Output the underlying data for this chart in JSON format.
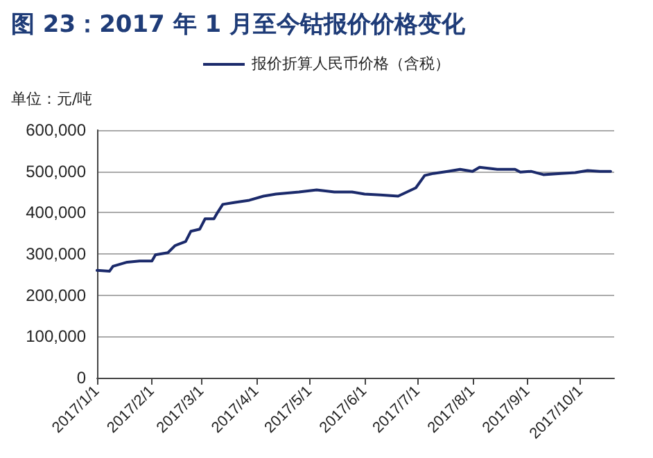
{
  "chart_data": {
    "type": "line",
    "title": "图 23：2017 年 1 月至今钴报价价格变化",
    "ylabel": "单位：元/吨",
    "series": [
      {
        "name": "报价折算人民币价格（含税）",
        "color": "#1b2a6b",
        "x": [
          "2017-01-01",
          "2017-01-08",
          "2017-01-10",
          "2017-01-18",
          "2017-01-25",
          "2017-02-01",
          "2017-02-03",
          "2017-02-10",
          "2017-02-14",
          "2017-02-20",
          "2017-02-23",
          "2017-02-28",
          "2017-03-03",
          "2017-03-08",
          "2017-03-10",
          "2017-03-13",
          "2017-03-20",
          "2017-03-28",
          "2017-04-05",
          "2017-04-12",
          "2017-04-25",
          "2017-05-05",
          "2017-05-15",
          "2017-05-25",
          "2017-06-01",
          "2017-06-10",
          "2017-06-20",
          "2017-06-25",
          "2017-06-30",
          "2017-07-05",
          "2017-07-10",
          "2017-07-18",
          "2017-07-25",
          "2017-08-01",
          "2017-08-05",
          "2017-08-15",
          "2017-08-25",
          "2017-08-28",
          "2017-09-03",
          "2017-09-10",
          "2017-09-20",
          "2017-09-28",
          "2017-10-05",
          "2017-10-12",
          "2017-10-18"
        ],
        "values": [
          260000,
          258000,
          270000,
          280000,
          283000,
          283000,
          298000,
          303000,
          320000,
          330000,
          355000,
          360000,
          385000,
          385000,
          400000,
          420000,
          425000,
          430000,
          440000,
          445000,
          450000,
          455000,
          450000,
          450000,
          445000,
          443000,
          440000,
          450000,
          460000,
          490000,
          495000,
          500000,
          505000,
          500000,
          510000,
          505000,
          505000,
          498000,
          500000,
          492000,
          495000,
          497000,
          502000,
          500000,
          500000
        ]
      }
    ],
    "xlim": [
      "2017-01-01",
      "2017-10-20"
    ],
    "xticks": [
      {
        "value": "2017-01-01",
        "label": "2017/1/1"
      },
      {
        "value": "2017-02-01",
        "label": "2017/2/1"
      },
      {
        "value": "2017-03-01",
        "label": "2017/3/1"
      },
      {
        "value": "2017-04-01",
        "label": "2017/4/1"
      },
      {
        "value": "2017-05-01",
        "label": "2017/5/1"
      },
      {
        "value": "2017-06-01",
        "label": "2017/6/1"
      },
      {
        "value": "2017-07-01",
        "label": "2017/7/1"
      },
      {
        "value": "2017-08-01",
        "label": "2017/8/1"
      },
      {
        "value": "2017-09-01",
        "label": "2017/9/1"
      },
      {
        "value": "2017-10-01",
        "label": "2017/10/1"
      }
    ],
    "ylim": [
      0,
      600000
    ],
    "yticks": [
      {
        "value": 0,
        "label": "0"
      },
      {
        "value": 100000,
        "label": "100,000"
      },
      {
        "value": 200000,
        "label": "200,000"
      },
      {
        "value": 300000,
        "label": "300,000"
      },
      {
        "value": 400000,
        "label": "400,000"
      },
      {
        "value": 500000,
        "label": "500,000"
      },
      {
        "value": 600000,
        "label": "600,000"
      }
    ],
    "grid": "y",
    "legend": "top",
    "marker": "none",
    "line_style": "solid"
  }
}
